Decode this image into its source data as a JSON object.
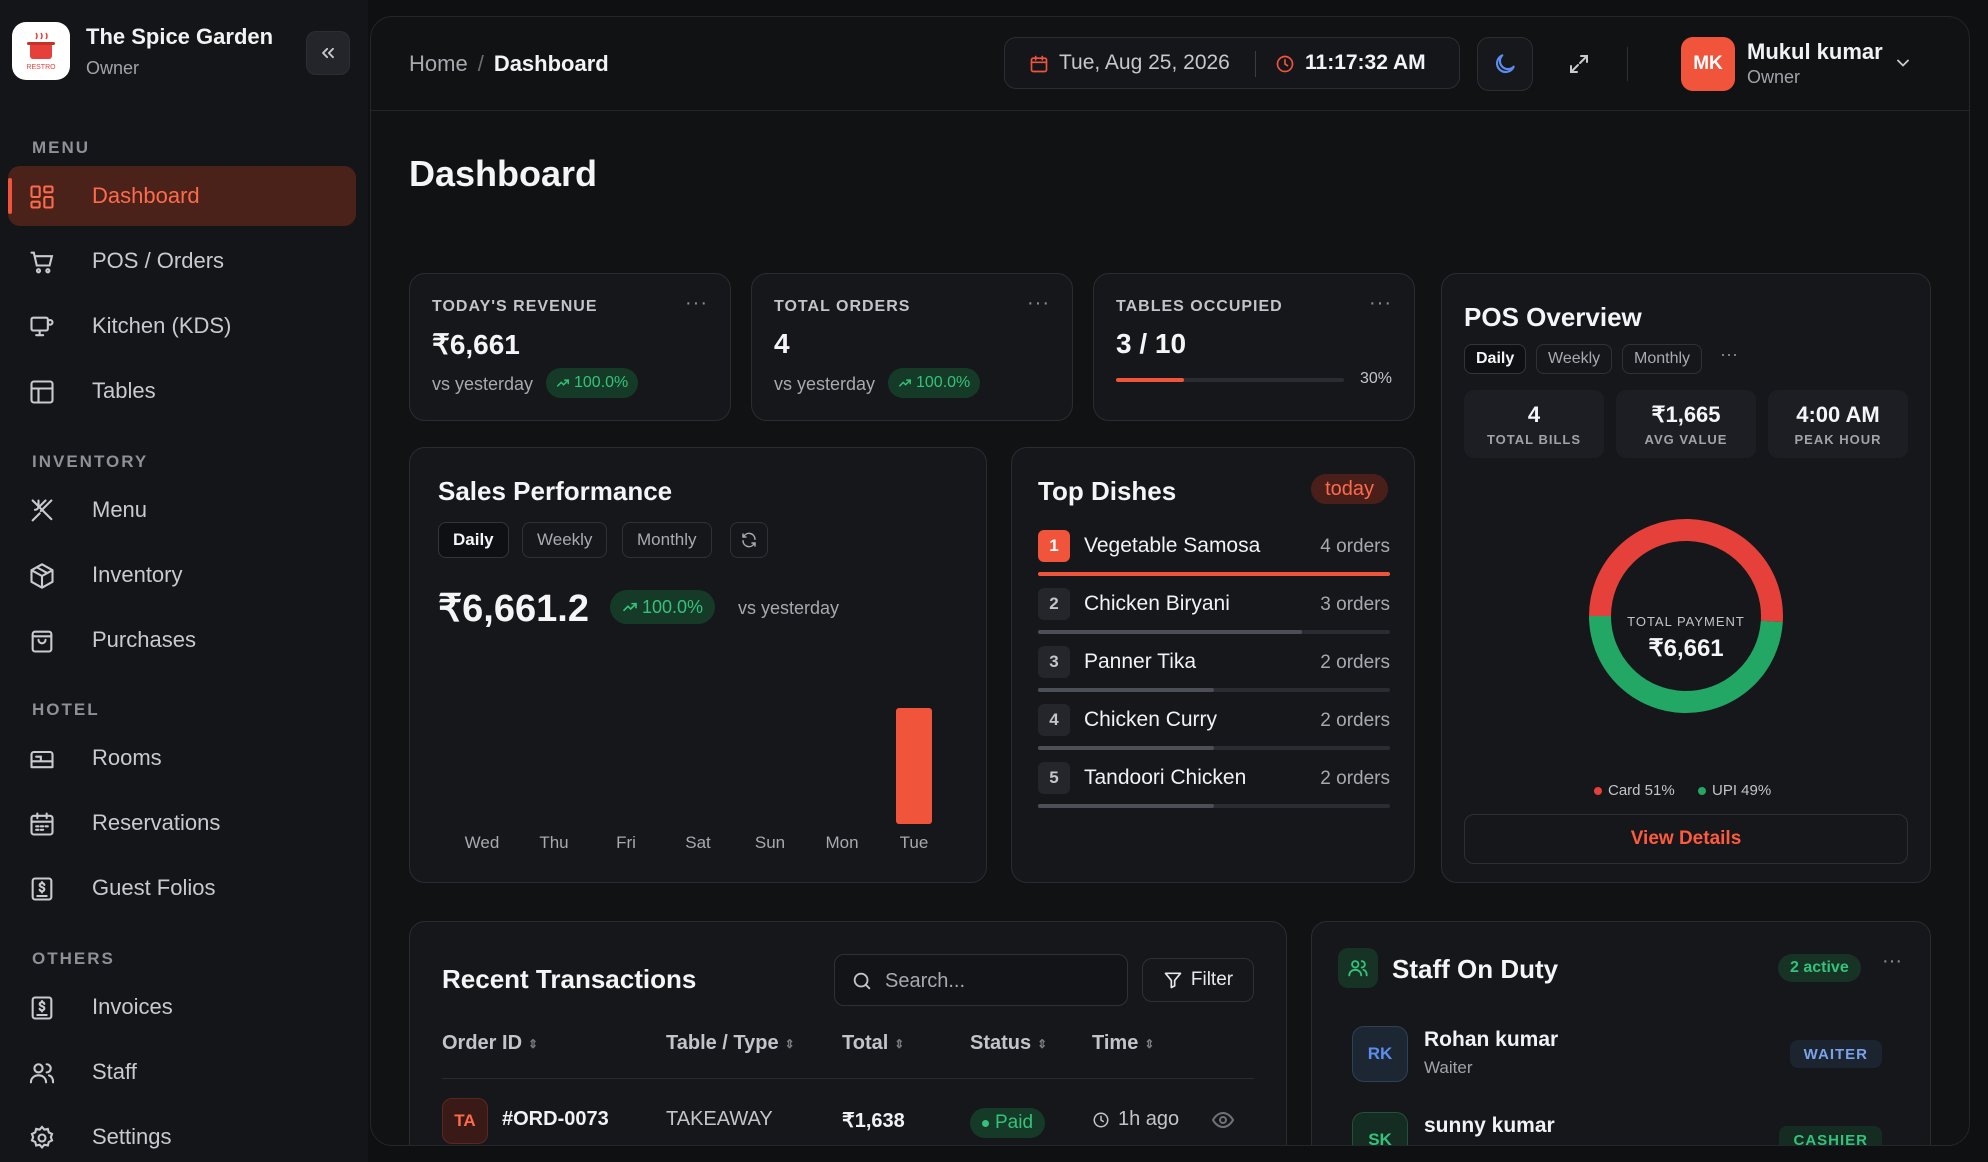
{
  "app": {
    "name": "The Spice Garden",
    "role": "Owner",
    "logo_text": "RESTRO"
  },
  "sidebar": {
    "sections": {
      "menu": "MENU",
      "inventory": "INVENTORY",
      "hotel": "HOTEL",
      "others": "OTHERS"
    },
    "items": [
      {
        "label": "Dashboard",
        "icon": "dashboard-icon",
        "active": true
      },
      {
        "label": "POS / Orders",
        "icon": "cart-icon"
      },
      {
        "label": "Kitchen (KDS)",
        "icon": "monitor-icon"
      },
      {
        "label": "Tables",
        "icon": "table-icon"
      },
      {
        "label": "Menu",
        "icon": "utensils-icon"
      },
      {
        "label": "Inventory",
        "icon": "box-icon"
      },
      {
        "label": "Purchases",
        "icon": "bag-icon"
      },
      {
        "label": "Rooms",
        "icon": "bed-icon"
      },
      {
        "label": "Reservations",
        "icon": "calendar-icon"
      },
      {
        "label": "Guest Folios",
        "icon": "receipt-icon"
      },
      {
        "label": "Invoices",
        "icon": "invoice-icon"
      },
      {
        "label": "Staff",
        "icon": "users-icon"
      },
      {
        "label": "Settings",
        "icon": "gear-icon"
      }
    ]
  },
  "header": {
    "breadcrumb": {
      "home": "Home",
      "separator": "/",
      "current": "Dashboard"
    },
    "date": "Tue, Aug 25, 2026",
    "time": "11:17:32 AM",
    "user": {
      "initials": "MK",
      "name": "Mukul kumar",
      "role": "Owner"
    }
  },
  "page_title": "Dashboard",
  "kpis": {
    "revenue": {
      "label": "TODAY'S REVENUE",
      "value": "₹6,661",
      "sub": "vs yesterday",
      "trend": "100.0%"
    },
    "orders": {
      "label": "TOTAL ORDERS",
      "value": "4",
      "sub": "vs yesterday",
      "trend": "100.0%"
    },
    "tables": {
      "label": "TABLES OCCUPIED",
      "value": "3 / 10",
      "percent_label": "30%",
      "occupancy": 0.3
    }
  },
  "sales": {
    "title": "Sales Performance",
    "tabs": [
      "Daily",
      "Weekly",
      "Monthly"
    ],
    "value": "₹6,661.2",
    "trend": "100.0%",
    "sub": "vs yesterday"
  },
  "chart_data": {
    "type": "bar",
    "categories": [
      "Wed",
      "Thu",
      "Fri",
      "Sat",
      "Sun",
      "Mon",
      "Tue"
    ],
    "values": [
      0,
      0,
      0,
      0,
      0,
      0,
      6661.2
    ],
    "title": "",
    "xlabel": "",
    "ylabel": "",
    "grid": false
  },
  "top_dishes": {
    "title": "Top Dishes",
    "badge": "today",
    "items": [
      {
        "rank": "1",
        "name": "Vegetable Samosa",
        "orders": "4 orders",
        "share": 1.0
      },
      {
        "rank": "2",
        "name": "Chicken Biryani",
        "orders": "3 orders",
        "share": 0.75
      },
      {
        "rank": "3",
        "name": "Panner Tika",
        "orders": "2 orders",
        "share": 0.5
      },
      {
        "rank": "4",
        "name": "Chicken Curry",
        "orders": "2 orders",
        "share": 0.5
      },
      {
        "rank": "5",
        "name": "Tandoori Chicken",
        "orders": "2 orders",
        "share": 0.5
      }
    ]
  },
  "pos": {
    "title": "POS Overview",
    "tabs": [
      "Daily",
      "Weekly",
      "Monthly"
    ],
    "stats": [
      {
        "value": "4",
        "label": "TOTAL BILLS"
      },
      {
        "value": "₹1,665",
        "label": "AVG VALUE"
      },
      {
        "value": "4:00 AM",
        "label": "PEAK HOUR"
      }
    ],
    "donut": {
      "center_label": "TOTAL PAYMENT",
      "center_value": "₹6,661"
    },
    "payments": [
      {
        "label": "Card 51%",
        "share": 51,
        "color": "#e5413a"
      },
      {
        "label": "UPI 49%",
        "share": 49,
        "color": "#22a765"
      }
    ],
    "view_details": "View Details"
  },
  "transactions": {
    "title": "Recent Transactions",
    "search_placeholder": "Search...",
    "filter": "Filter",
    "columns": [
      "Order ID",
      "Table / Type",
      "Total",
      "Status",
      "Time"
    ],
    "rows": [
      {
        "badge": "TA",
        "id": "#ORD-0073",
        "type": "TAKEAWAY",
        "total": "₹1,638",
        "status": "Paid",
        "time": "1h ago"
      }
    ]
  },
  "staff": {
    "title": "Staff On Duty",
    "active": "2 active",
    "members": [
      {
        "initials": "RK",
        "name": "Rohan kumar",
        "role": "Waiter",
        "tag": "WAITER"
      },
      {
        "initials": "SK",
        "name": "sunny kumar",
        "role": "Cashier",
        "tag": "CASHIER"
      }
    ]
  },
  "colors": {
    "accent": "#f0543a",
    "success": "#34c27a",
    "card": "#16171b",
    "background": "#0f1012"
  }
}
